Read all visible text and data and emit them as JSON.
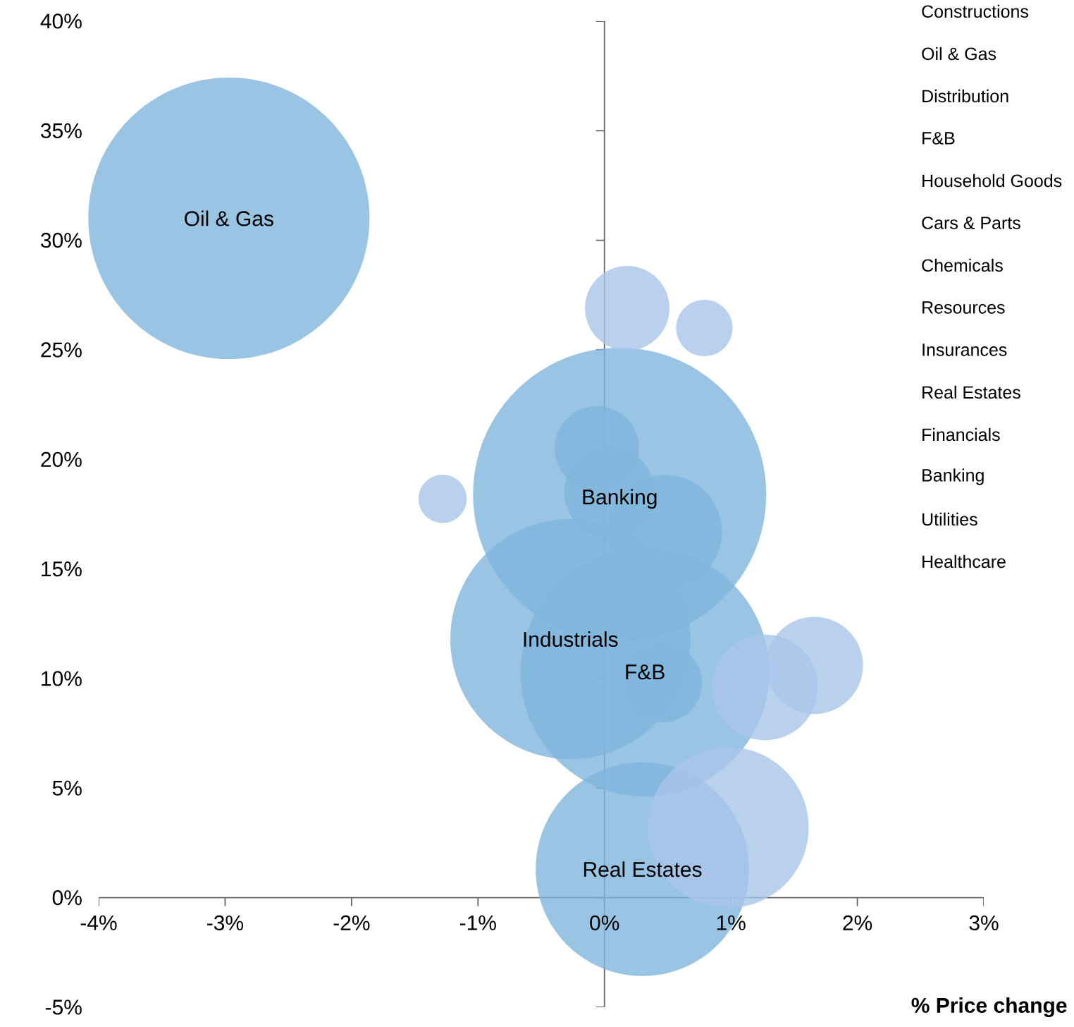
{
  "chart_data": {
    "type": "bubble",
    "xlabel": "% Price change",
    "xlim": [
      -4,
      3
    ],
    "ylim": [
      -5,
      40
    ],
    "xticks": [
      {
        "value": -4,
        "label": "-4%"
      },
      {
        "value": -3,
        "label": "-3%"
      },
      {
        "value": -2,
        "label": "-2%"
      },
      {
        "value": -1,
        "label": "-1%"
      },
      {
        "value": 0,
        "label": "0%"
      },
      {
        "value": 1,
        "label": "1%"
      },
      {
        "value": 2,
        "label": "2%"
      },
      {
        "value": 3,
        "label": "3%"
      }
    ],
    "yticks": [
      {
        "value": -5,
        "label": "-5%"
      },
      {
        "value": 0,
        "label": "0%"
      },
      {
        "value": 5,
        "label": "5%"
      },
      {
        "value": 10,
        "label": "10%"
      },
      {
        "value": 15,
        "label": "15%"
      },
      {
        "value": 20,
        "label": "20%"
      },
      {
        "value": 25,
        "label": "25%"
      },
      {
        "value": 30,
        "label": "30%"
      },
      {
        "value": 35,
        "label": "35%"
      },
      {
        "value": 40,
        "label": "40%"
      }
    ],
    "x": [
      0.12,
      -2.97,
      -0.27,
      0.32,
      0.3,
      0.98,
      0.48,
      1.27,
      1.66,
      -0.06,
      0.04,
      0.18,
      0.46,
      0.79,
      -1.28
    ],
    "values": [
      18.4,
      31.0,
      11.8,
      10.3,
      1.3,
      3.2,
      16.7,
      9.6,
      10.6,
      20.5,
      18.5,
      26.9,
      9.8,
      26.0,
      18.2
    ],
    "sizes": [
      1,
      0.92,
      0.67,
      0.72,
      0.53,
      0.3,
      0.15,
      0.13,
      0.11,
      0.083,
      0.095,
      0.083,
      0.072,
      0.037,
      0.027
    ],
    "colors": [
      "#7fb5dc",
      "#7fb5dc",
      "#7fb5dc",
      "#7fb5dc",
      "#7fb5dc",
      "#a9c5e8",
      "#7fb5dc",
      "#a9c5e8",
      "#a9c5e8",
      "#7fb5dc",
      "#7fb5dc",
      "#a9c5e8",
      "#7fb5dc",
      "#a9c5e8",
      "#a9c5e8"
    ],
    "annotations": [
      {
        "text": "Oil & Gas",
        "x": -2.97,
        "y": 31.0
      },
      {
        "text": "Banking",
        "x": 0.12,
        "y": 18.2
      },
      {
        "text": "Industrials",
        "x": -0.27,
        "y": 11.8
      },
      {
        "text": "F&B",
        "x": 0.32,
        "y": 10.3
      },
      {
        "text": "Real Estates",
        "x": 0.3,
        "y": 1.3
      },
      "Constructions",
      "Oil & Gas",
      "Distribution",
      "F&B",
      "Household Goods",
      "Cars & Parts",
      "Chemicals",
      "Resources",
      "Insurances",
      "Real Estates",
      "Financials",
      "Banking",
      "Utilities",
      "Healthcare"
    ]
  }
}
